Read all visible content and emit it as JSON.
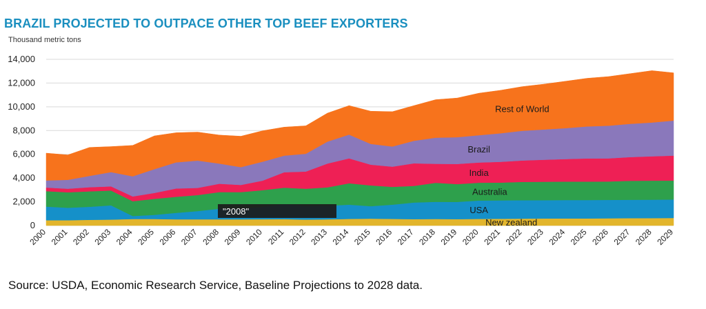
{
  "title": "BRAZIL PROJECTED TO OUTPACE OTHER TOP BEEF EXPORTERS",
  "unit_label": "Thousand metric tons",
  "source": "Source: USDA, Economic Research Service, Baseline Projections to 2028 data.",
  "tooltip": "\"2008\"",
  "colors": {
    "New zealand": "#e2b52c",
    "USA": "#1590c9",
    "Australia": "#2ea04c",
    "India": "#ee2055",
    "Brazil": "#8a78bb",
    "Rest of World": "#f7731c"
  },
  "chart_data": {
    "type": "area",
    "stacked": true,
    "title": "BRAZIL PROJECTED TO OUTPACE OTHER TOP BEEF EXPORTERS",
    "ylabel": "Thousand metric tons",
    "xlabel": "",
    "ylim": [
      0,
      14000
    ],
    "yticks": [
      0,
      2000,
      4000,
      6000,
      8000,
      10000,
      12000,
      14000
    ],
    "ytick_labels": [
      "0",
      "2,000",
      "4,000",
      "6,000",
      "8,000",
      "10,000",
      "12,000",
      "14,000"
    ],
    "grid": true,
    "x": [
      "2000",
      "2001",
      "2002",
      "2003",
      "2004",
      "2005",
      "2006",
      "2007",
      "2008",
      "2009",
      "2010",
      "2011",
      "2012",
      "2013",
      "2014",
      "2015",
      "2016",
      "2017",
      "2018",
      "2019",
      "2020",
      "2021",
      "2022",
      "2023",
      "2024",
      "2025",
      "2026",
      "2027",
      "2028",
      "2029"
    ],
    "series": [
      {
        "name": "New zealand",
        "values": [
          450,
          450,
          480,
          500,
          550,
          550,
          520,
          520,
          520,
          520,
          530,
          540,
          500,
          520,
          560,
          580,
          560,
          540,
          550,
          540,
          560,
          570,
          580,
          590,
          600,
          600,
          610,
          620,
          630,
          640
        ]
      },
      {
        "name": "USA",
        "values": [
          1150,
          1050,
          1100,
          1200,
          250,
          350,
          550,
          700,
          900,
          900,
          1050,
          1250,
          1150,
          1150,
          1200,
          1050,
          1200,
          1400,
          1450,
          1450,
          1550,
          1550,
          1550,
          1550,
          1550,
          1550,
          1550,
          1550,
          1550,
          1550
        ]
      },
      {
        "name": "Australia",
        "values": [
          1300,
          1300,
          1300,
          1250,
          1250,
          1350,
          1350,
          1350,
          1400,
          1400,
          1400,
          1400,
          1450,
          1550,
          1800,
          1750,
          1500,
          1400,
          1600,
          1500,
          1500,
          1500,
          1550,
          1550,
          1550,
          1550,
          1550,
          1600,
          1600,
          1600
        ]
      },
      {
        "name": "India",
        "values": [
          300,
          300,
          350,
          350,
          400,
          500,
          700,
          600,
          700,
          600,
          800,
          1300,
          1450,
          2000,
          2100,
          1750,
          1700,
          1900,
          1600,
          1700,
          1700,
          1750,
          1800,
          1850,
          1900,
          1950,
          1950,
          2000,
          2050,
          2100
        ]
      },
      {
        "name": "Brazil",
        "values": [
          600,
          750,
          950,
          1200,
          1700,
          2000,
          2200,
          2300,
          1700,
          1500,
          1600,
          1400,
          1500,
          1850,
          2000,
          1750,
          1700,
          1900,
          2200,
          2250,
          2300,
          2400,
          2500,
          2550,
          2600,
          2700,
          2750,
          2800,
          2850,
          2950
        ]
      },
      {
        "name": "Rest of World",
        "values": [
          2300,
          2100,
          2400,
          2150,
          2600,
          2800,
          2500,
          2400,
          2400,
          2600,
          2600,
          2400,
          2350,
          2400,
          2440,
          2750,
          2930,
          2960,
          3200,
          3300,
          3540,
          3620,
          3720,
          3820,
          3950,
          4050,
          4140,
          4230,
          4370,
          4020
        ]
      }
    ]
  }
}
